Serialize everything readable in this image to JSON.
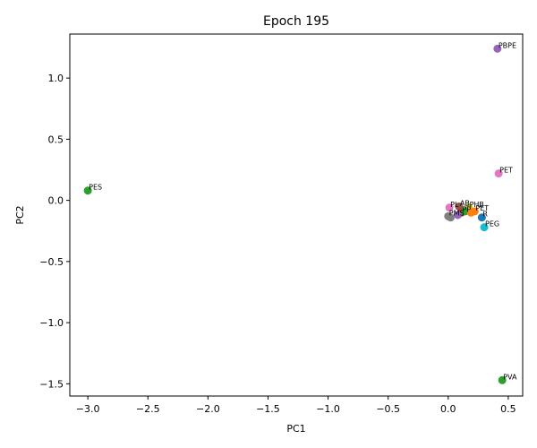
{
  "chart_data": {
    "type": "scatter",
    "title": "Epoch 195",
    "xlabel": "PC1",
    "ylabel": "PC2",
    "xlim": [
      -3.15,
      0.62
    ],
    "ylim": [
      -1.6,
      1.36
    ],
    "xticks": [
      -3.0,
      -2.5,
      -2.0,
      -1.5,
      -1.0,
      -0.5,
      0.0,
      0.5
    ],
    "xtick_labels": [
      "−3.0",
      "−2.5",
      "−2.0",
      "−1.5",
      "−1.0",
      "−0.5",
      "0.0",
      "0.5"
    ],
    "yticks": [
      -1.5,
      -1.0,
      -0.5,
      0.0,
      0.5,
      1.0
    ],
    "ytick_labels": [
      "−1.5",
      "−1.0",
      "−0.5",
      "0.0",
      "0.5",
      "1.0"
    ],
    "grid": false,
    "points": [
      {
        "label": "PBPE",
        "x": 0.41,
        "y": 1.24,
        "color": "#9467bd"
      },
      {
        "label": "PET",
        "x": 0.42,
        "y": 0.22,
        "color": "#e377c2"
      },
      {
        "label": "PES",
        "x": -3.0,
        "y": 0.08,
        "color": "#2ca02c"
      },
      {
        "label": "PVA",
        "x": 0.45,
        "y": -1.47,
        "color": "#2ca02c"
      },
      {
        "label": "PEG",
        "x": 0.3,
        "y": -0.22,
        "color": "#17becf"
      },
      {
        "label": "R",
        "x": 0.28,
        "y": -0.14,
        "color": "#1f77b4"
      },
      {
        "label": "PMS",
        "x": 0.0,
        "y": -0.13,
        "color": "#7f7f7f"
      },
      {
        "label": "",
        "x": 0.02,
        "y": -0.14,
        "color": "#7f7f7f"
      },
      {
        "label": "PL",
        "x": 0.01,
        "y": -0.06,
        "color": "#e377c2"
      },
      {
        "label": "AB",
        "x": 0.09,
        "y": -0.05,
        "color": "#8c564b"
      },
      {
        "label": "PHB",
        "x": 0.17,
        "y": -0.06,
        "color": "#bcbd22"
      },
      {
        "label": "PET",
        "x": 0.22,
        "y": -0.09,
        "color": "#ff7f0e"
      },
      {
        "label": "PP",
        "x": 0.11,
        "y": -0.1,
        "color": "#d62728"
      },
      {
        "label": "",
        "x": 0.08,
        "y": -0.12,
        "color": "#9467bd"
      },
      {
        "label": "",
        "x": 0.14,
        "y": -0.09,
        "color": "#2ca02c"
      },
      {
        "label": "",
        "x": 0.19,
        "y": -0.1,
        "color": "#ff7f0e"
      }
    ]
  }
}
